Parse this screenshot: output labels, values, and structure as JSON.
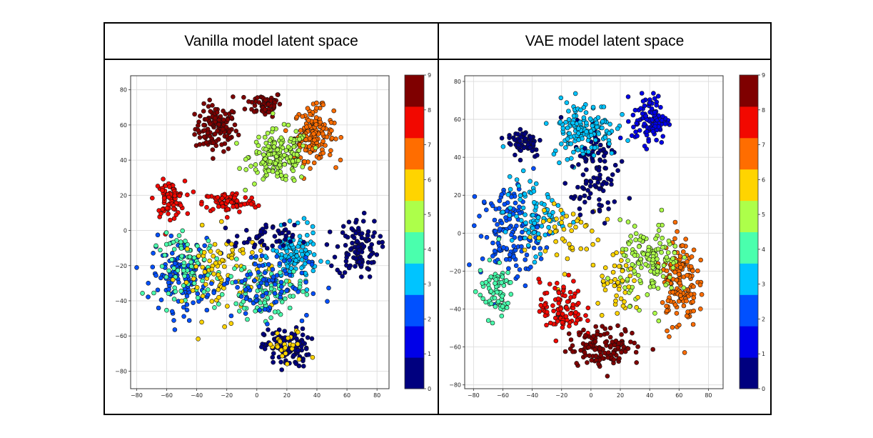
{
  "panel_titles": [
    "Vanilla model latent space",
    "VAE model latent space"
  ],
  "colors": [
    "#00007f",
    "#0000e8",
    "#0050ff",
    "#00c4ff",
    "#4affad",
    "#adff4a",
    "#ffd400",
    "#ff6d00",
    "#f20800",
    "#7f0000"
  ],
  "chart_data": [
    {
      "type": "scatter",
      "title": "Vanilla model latent space",
      "xlabel": "",
      "ylabel": "",
      "xlim": [
        -84,
        88
      ],
      "ylim": [
        -90,
        88
      ],
      "xticks": [
        -80,
        -60,
        -40,
        -20,
        0,
        20,
        40,
        60,
        80
      ],
      "yticks": [
        -80,
        -60,
        -40,
        -20,
        0,
        20,
        40,
        60,
        80
      ],
      "grid": true,
      "colorbar": {
        "min": 0,
        "max": 9,
        "ticks": [
          0,
          1,
          2,
          3,
          4,
          5,
          6,
          7,
          8,
          9
        ],
        "colormap": "jet"
      },
      "clusters": [
        {
          "label": 9,
          "cx": -27,
          "cy": 58,
          "rx": 14,
          "ry": 13,
          "n": 120
        },
        {
          "label": 9,
          "cx": 5,
          "cy": 72,
          "rx": 12,
          "ry": 7,
          "n": 60
        },
        {
          "label": 7,
          "cx": 38,
          "cy": 55,
          "rx": 13,
          "ry": 15,
          "n": 150
        },
        {
          "label": 5,
          "cx": 15,
          "cy": 42,
          "rx": 20,
          "ry": 15,
          "n": 170
        },
        {
          "label": 8,
          "cx": -58,
          "cy": 18,
          "rx": 10,
          "ry": 10,
          "n": 80
        },
        {
          "label": 8,
          "cx": -18,
          "cy": 16,
          "rx": 18,
          "ry": 6,
          "n": 80
        },
        {
          "label": 0,
          "cx": 67,
          "cy": -10,
          "rx": 14,
          "ry": 17,
          "n": 110
        },
        {
          "label": 0,
          "cx": 20,
          "cy": -67,
          "rx": 15,
          "ry": 11,
          "n": 110
        },
        {
          "label": 6,
          "cx": 20,
          "cy": -67,
          "rx": 15,
          "ry": 11,
          "n": 25
        },
        {
          "label": 2,
          "cx": -50,
          "cy": -25,
          "rx": 20,
          "ry": 20,
          "n": 140
        },
        {
          "label": 4,
          "cx": -45,
          "cy": -20,
          "rx": 22,
          "ry": 18,
          "n": 80
        },
        {
          "label": 6,
          "cx": -20,
          "cy": -25,
          "rx": 30,
          "ry": 25,
          "n": 90
        },
        {
          "label": 3,
          "cx": 25,
          "cy": -15,
          "rx": 15,
          "ry": 15,
          "n": 120
        },
        {
          "label": 4,
          "cx": 5,
          "cy": -35,
          "rx": 25,
          "ry": 15,
          "n": 100
        },
        {
          "label": 2,
          "cx": 5,
          "cy": -30,
          "rx": 30,
          "ry": 20,
          "n": 90
        },
        {
          "label": 0,
          "cx": 5,
          "cy": -5,
          "rx": 20,
          "ry": 8,
          "n": 50
        }
      ]
    },
    {
      "type": "scatter",
      "title": "VAE model latent space",
      "xlabel": "",
      "ylabel": "",
      "xlim": [
        -86,
        90
      ],
      "ylim": [
        -82,
        83
      ],
      "xticks": [
        -80,
        -60,
        -40,
        -20,
        0,
        20,
        40,
        60,
        80
      ],
      "yticks": [
        -80,
        -60,
        -40,
        -20,
        0,
        20,
        40,
        60,
        80
      ],
      "grid": true,
      "colorbar": {
        "min": 0,
        "max": 9,
        "ticks": [
          0,
          1,
          2,
          3,
          4,
          5,
          6,
          7,
          8,
          9
        ],
        "colormap": "jet"
      },
      "clusters": [
        {
          "label": 1,
          "cx": 40,
          "cy": 60,
          "rx": 12,
          "ry": 13,
          "n": 110
        },
        {
          "label": 0,
          "cx": -45,
          "cy": 48,
          "rx": 12,
          "ry": 8,
          "n": 60
        },
        {
          "label": 0,
          "cx": 5,
          "cy": 40,
          "rx": 15,
          "ry": 20,
          "n": 70
        },
        {
          "label": 3,
          "cx": -5,
          "cy": 55,
          "rx": 22,
          "ry": 15,
          "n": 140
        },
        {
          "label": 2,
          "cx": -55,
          "cy": 0,
          "rx": 20,
          "ry": 25,
          "n": 140
        },
        {
          "label": 3,
          "cx": -40,
          "cy": 10,
          "rx": 20,
          "ry": 20,
          "n": 80
        },
        {
          "label": 6,
          "cx": -20,
          "cy": 0,
          "rx": 25,
          "ry": 20,
          "n": 50
        },
        {
          "label": 4,
          "cx": -65,
          "cy": -30,
          "rx": 12,
          "ry": 15,
          "n": 70
        },
        {
          "label": 8,
          "cx": -20,
          "cy": -40,
          "rx": 15,
          "ry": 15,
          "n": 100
        },
        {
          "label": 9,
          "cx": 10,
          "cy": -60,
          "rx": 25,
          "ry": 10,
          "n": 130
        },
        {
          "label": 7,
          "cx": 60,
          "cy": -25,
          "rx": 12,
          "ry": 25,
          "n": 150
        },
        {
          "label": 5,
          "cx": 40,
          "cy": -15,
          "rx": 20,
          "ry": 20,
          "n": 140
        },
        {
          "label": 6,
          "cx": 20,
          "cy": -30,
          "rx": 15,
          "ry": 15,
          "n": 40
        },
        {
          "label": 0,
          "cx": 0,
          "cy": 20,
          "rx": 20,
          "ry": 15,
          "n": 40
        }
      ]
    }
  ]
}
